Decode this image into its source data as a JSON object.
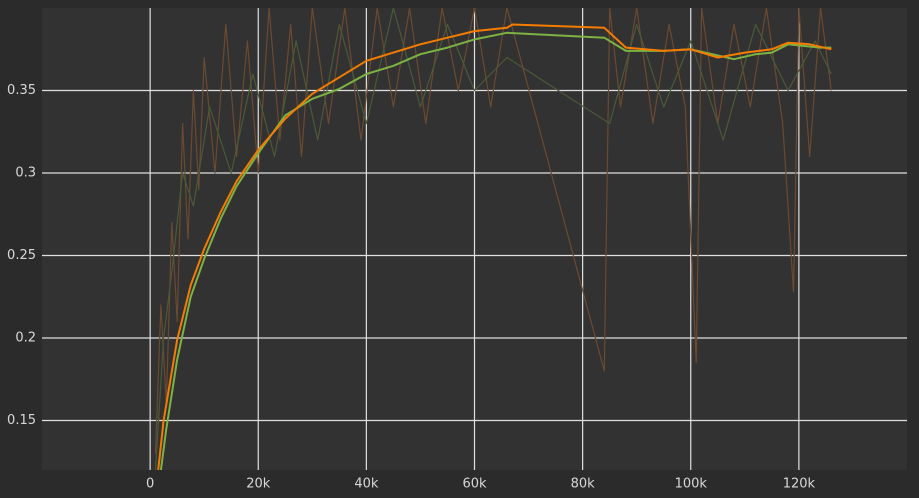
{
  "chart_data": {
    "type": "line",
    "x_units": "steps",
    "xlim": [
      -20000,
      140000
    ],
    "ylim": [
      0.12,
      0.4
    ],
    "xticks": [
      {
        "value": 0,
        "label": "0"
      },
      {
        "value": 20000,
        "label": "20k"
      },
      {
        "value": 40000,
        "label": "40k"
      },
      {
        "value": 60000,
        "label": "60k"
      },
      {
        "value": 80000,
        "label": "80k"
      },
      {
        "value": 100000,
        "label": "100k"
      },
      {
        "value": 120000,
        "label": "120k"
      }
    ],
    "yticks": [
      0.15,
      0.2,
      0.25,
      0.3,
      0.35
    ],
    "grid": true,
    "series": [
      {
        "color": "#6b4a30",
        "x": [
          1000,
          2000,
          3000,
          4000,
          5000,
          6000,
          7000,
          8000,
          9000,
          10000,
          12000,
          14000,
          16000,
          18000,
          20000,
          22000,
          24000,
          26000,
          28000,
          30000,
          33000,
          36000,
          39000,
          42000,
          45000,
          48000,
          51000,
          54000,
          57000,
          60000,
          63000,
          66000,
          84000,
          85000,
          87000,
          90000,
          93000,
          96000,
          99000,
          101000,
          102000,
          105000,
          108000,
          111000,
          114000,
          117000,
          119000,
          120000,
          122000,
          124000,
          126000
        ],
        "values": [
          0.13,
          0.22,
          0.16,
          0.27,
          0.21,
          0.33,
          0.26,
          0.35,
          0.29,
          0.37,
          0.3,
          0.39,
          0.31,
          0.38,
          0.3,
          0.4,
          0.32,
          0.39,
          0.31,
          0.4,
          0.33,
          0.4,
          0.32,
          0.4,
          0.34,
          0.4,
          0.33,
          0.4,
          0.35,
          0.4,
          0.34,
          0.4,
          0.18,
          0.4,
          0.34,
          0.4,
          0.33,
          0.39,
          0.34,
          0.185,
          0.4,
          0.33,
          0.39,
          0.34,
          0.4,
          0.33,
          0.228,
          0.4,
          0.31,
          0.4,
          0.35
        ]
      },
      {
        "color": "#4a5a38",
        "x": [
          1000,
          2500,
          4000,
          6000,
          8000,
          11000,
          15000,
          19000,
          23000,
          27000,
          31000,
          35000,
          40000,
          45000,
          50000,
          55000,
          60000,
          66000,
          85000,
          90000,
          95000,
          100000,
          106000,
          112000,
          118000,
          123000,
          126000
        ],
        "values": [
          0.12,
          0.2,
          0.24,
          0.3,
          0.28,
          0.34,
          0.3,
          0.36,
          0.31,
          0.38,
          0.32,
          0.39,
          0.33,
          0.4,
          0.34,
          0.39,
          0.35,
          0.37,
          0.33,
          0.39,
          0.34,
          0.38,
          0.32,
          0.39,
          0.35,
          0.38,
          0.36
        ]
      },
      {
        "color": "#7cb342",
        "x": [
          2000,
          3000,
          5000,
          7500,
          10000,
          13000,
          16000,
          20000,
          25000,
          30000,
          35000,
          40000,
          45000,
          50000,
          55000,
          60000,
          66000,
          84000,
          88000,
          95000,
          100000,
          104000,
          108000,
          112000,
          115000,
          118000,
          121000,
          124000,
          126000
        ],
        "values": [
          0.12,
          0.145,
          0.187,
          0.225,
          0.248,
          0.272,
          0.292,
          0.312,
          0.335,
          0.345,
          0.351,
          0.36,
          0.365,
          0.372,
          0.376,
          0.381,
          0.385,
          0.382,
          0.374,
          0.374,
          0.375,
          0.372,
          0.369,
          0.372,
          0.373,
          0.378,
          0.377,
          0.376,
          0.376
        ]
      },
      {
        "color": "#f57c00",
        "x": [
          1500,
          2500,
          5000,
          7500,
          10000,
          13000,
          16000,
          20000,
          25000,
          30000,
          35000,
          40000,
          45000,
          50000,
          55000,
          60000,
          66000,
          67000,
          84000,
          88000,
          95000,
          100000,
          105000,
          110000,
          115000,
          118000,
          122000,
          126000
        ],
        "values": [
          0.12,
          0.15,
          0.199,
          0.232,
          0.254,
          0.276,
          0.295,
          0.314,
          0.333,
          0.348,
          0.358,
          0.368,
          0.373,
          0.378,
          0.382,
          0.386,
          0.388,
          0.39,
          0.388,
          0.376,
          0.374,
          0.375,
          0.37,
          0.373,
          0.375,
          0.379,
          0.378,
          0.375
        ]
      }
    ]
  }
}
